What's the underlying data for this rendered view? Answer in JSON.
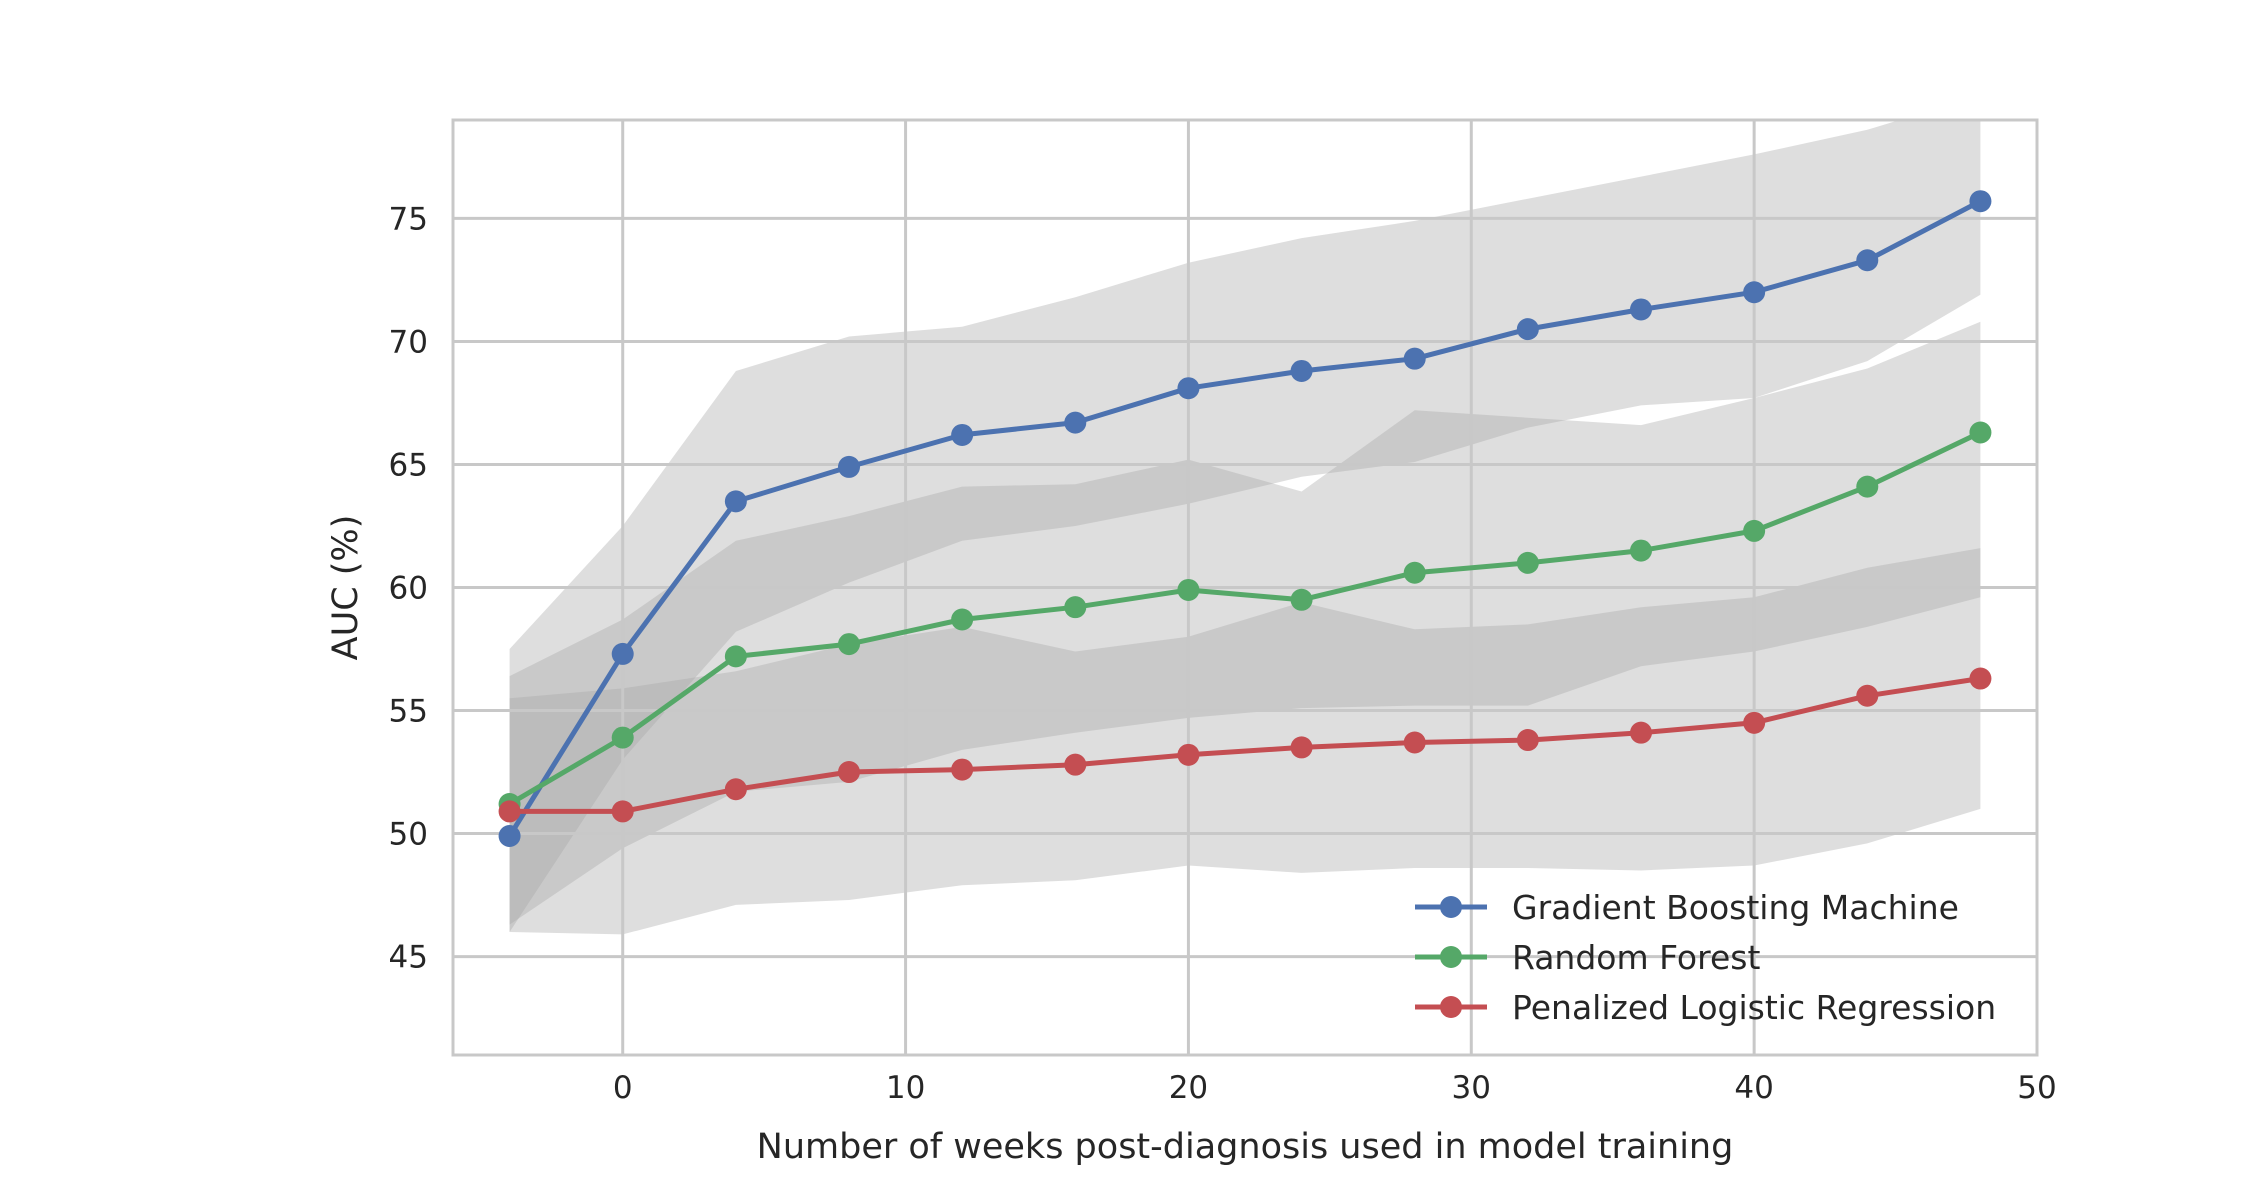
{
  "chart_data": {
    "type": "line",
    "title": "",
    "xlabel": "Number of weeks post-diagnosis used in model training",
    "ylabel": "AUC (%)",
    "xlim": [
      -6,
      50
    ],
    "ylim": [
      41,
      79
    ],
    "x_ticks": [
      0,
      10,
      20,
      30,
      40,
      50
    ],
    "y_ticks": [
      45,
      50,
      55,
      60,
      65,
      70,
      75
    ],
    "grid": true,
    "legend_position": "lower-right",
    "x": [
      -4,
      0,
      4,
      8,
      12,
      16,
      20,
      24,
      28,
      32,
      36,
      40,
      44,
      48
    ],
    "series": [
      {
        "name": "Gradient Boosting Machine",
        "color": "#4c72b0",
        "values": [
          49.9,
          57.3,
          63.5,
          64.9,
          66.2,
          66.7,
          68.1,
          68.8,
          69.3,
          70.5,
          71.3,
          72.0,
          73.3,
          75.7
        ],
        "band_upper": [
          57.5,
          62.5,
          68.8,
          70.2,
          70.6,
          71.8,
          73.2,
          74.2,
          74.9,
          75.8,
          76.7,
          77.6,
          78.6,
          80.0
        ],
        "band_lower": [
          46.0,
          53.0,
          58.2,
          60.2,
          61.9,
          62.5,
          63.4,
          64.5,
          65.1,
          66.5,
          67.4,
          67.7,
          69.2,
          71.9
        ]
      },
      {
        "name": "Random Forest",
        "color": "#55a868",
        "values": [
          51.2,
          53.9,
          57.2,
          57.7,
          58.7,
          59.2,
          59.9,
          59.5,
          60.6,
          61.0,
          61.5,
          62.3,
          64.1,
          66.3
        ],
        "band_upper": [
          56.4,
          58.7,
          61.9,
          62.9,
          64.1,
          64.2,
          65.2,
          63.9,
          67.2,
          66.9,
          66.6,
          67.7,
          68.9,
          70.8
        ],
        "band_lower": [
          46.3,
          49.4,
          51.7,
          52.1,
          53.4,
          54.1,
          54.7,
          55.1,
          55.2,
          55.2,
          56.8,
          57.4,
          58.4,
          59.6
        ]
      },
      {
        "name": "Penalized Logistic Regression",
        "color": "#c44e52",
        "values": [
          50.9,
          50.9,
          51.8,
          52.5,
          52.6,
          52.8,
          53.2,
          53.5,
          53.7,
          53.8,
          54.1,
          54.5,
          55.6,
          56.3
        ],
        "band_upper": [
          55.5,
          55.9,
          56.6,
          57.7,
          58.4,
          57.4,
          58.0,
          59.4,
          58.3,
          58.5,
          59.2,
          59.6,
          60.8,
          61.6
        ],
        "band_lower": [
          46.0,
          45.9,
          47.1,
          47.3,
          47.9,
          48.1,
          48.7,
          48.4,
          48.6,
          48.6,
          48.5,
          48.7,
          49.6,
          51.0
        ]
      }
    ]
  }
}
